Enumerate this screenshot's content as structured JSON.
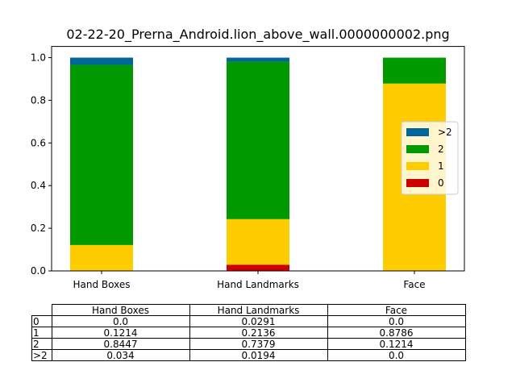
{
  "chart_data": {
    "type": "bar",
    "stacked": true,
    "title": "02-22-20_Prerna_Android.lion_above_wall.0000000002.png",
    "categories": [
      "Hand Boxes",
      "Hand Landmarks",
      "Face"
    ],
    "ylim": [
      0,
      1.0
    ],
    "yticks": [
      0.0,
      0.2,
      0.4,
      0.6,
      0.8,
      1.0
    ],
    "ytick_labels": [
      "0.0",
      "0.2",
      "0.4",
      "0.6",
      "0.8",
      "1.0"
    ],
    "xlabel": "",
    "ylabel": "",
    "grid": false,
    "legend_position": "right",
    "series": [
      {
        "name": "0",
        "color": "#cc0000",
        "values": [
          0.0,
          0.0291,
          0.0
        ]
      },
      {
        "name": "1",
        "color": "#ffcc00",
        "values": [
          0.1214,
          0.2136,
          0.8786
        ]
      },
      {
        "name": "2",
        "color": "#009900",
        "values": [
          0.8447,
          0.7379,
          0.1214
        ]
      },
      {
        "name": ">2",
        "color": "#006699",
        "values": [
          0.034,
          0.0194,
          0.0
        ]
      }
    ],
    "legend_order": [
      ">2",
      "2",
      "1",
      "0"
    ]
  },
  "table": {
    "columns": [
      "Hand Boxes",
      "Hand Landmarks",
      "Face"
    ],
    "rows": [
      {
        "label": "0",
        "cells": [
          "0.0",
          "0.0291",
          "0.0"
        ]
      },
      {
        "label": "1",
        "cells": [
          "0.1214",
          "0.2136",
          "0.8786"
        ]
      },
      {
        "label": "2",
        "cells": [
          "0.8447",
          "0.7379",
          "0.1214"
        ]
      },
      {
        "label": ">2",
        "cells": [
          "0.034",
          "0.0194",
          "0.0"
        ]
      }
    ]
  }
}
